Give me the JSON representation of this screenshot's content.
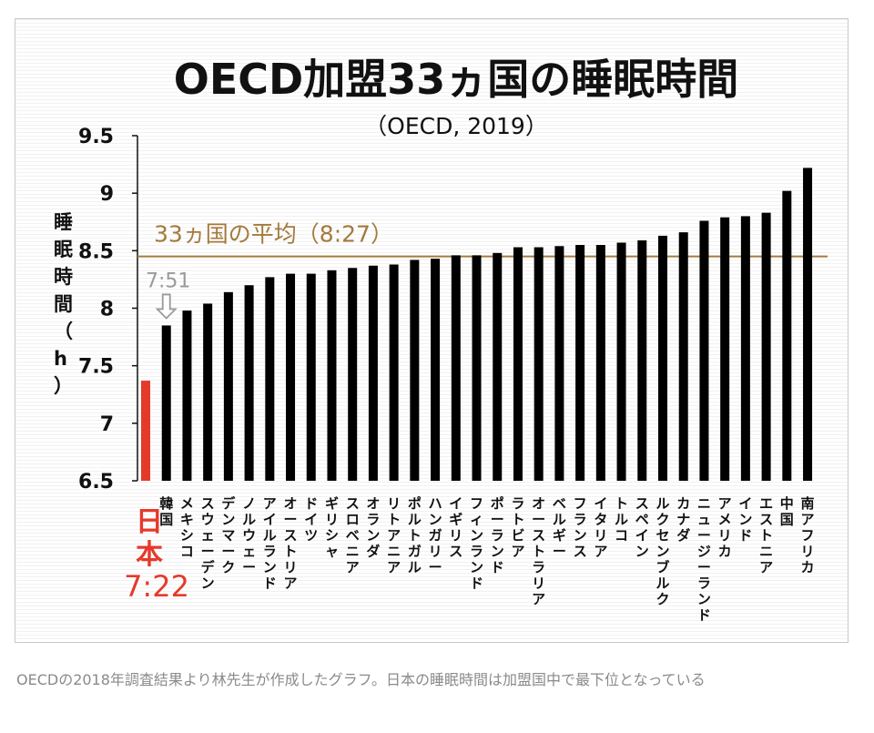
{
  "chart_data": {
    "type": "bar",
    "title": "OECD加盟33ヵ国の睡眠時間",
    "subtitle": "（OECD, 2019）",
    "ylabel": "睡眠時間（h）",
    "ylim": [
      6.5,
      9.5
    ],
    "yticks": [
      "9.5",
      "9",
      "8.5",
      "8",
      "7.5",
      "7",
      "6.5"
    ],
    "grid": false,
    "average": {
      "value": 8.45,
      "label": "33ヵ国の平均（8:27）",
      "color": "#a47a3c"
    },
    "highlight": {
      "category": "日本",
      "value_label": "7:22",
      "color": "#e53a2a"
    },
    "annotation": {
      "text": "7:51",
      "target": "韓国",
      "color": "#9a9a9a"
    },
    "bar_color": "#000000",
    "categories": [
      "日本",
      "韓国",
      "メキシコ",
      "スウェーデン",
      "デンマーク",
      "ノルウェー",
      "アイルランド",
      "オーストリア",
      "ドイツ",
      "ギリシャ",
      "スロベニア",
      "オランダ",
      "リトアニア",
      "ポルトガル",
      "ハンガリー",
      "イギリス",
      "フィンランド",
      "ポーランド",
      "ラトビア",
      "オーストラリア",
      "ベルギー",
      "フランス",
      "イタリア",
      "トルコ",
      "スペイン",
      "ルクセンブルク",
      "カナダ",
      "ニュージーランド",
      "アメリカ",
      "インド",
      "エストニア",
      "中国",
      "南アフリカ"
    ],
    "values": [
      7.37,
      7.85,
      7.98,
      8.04,
      8.14,
      8.2,
      8.27,
      8.3,
      8.3,
      8.33,
      8.35,
      8.37,
      8.38,
      8.42,
      8.43,
      8.46,
      8.46,
      8.48,
      8.53,
      8.53,
      8.54,
      8.55,
      8.55,
      8.57,
      8.59,
      8.63,
      8.66,
      8.76,
      8.79,
      8.8,
      8.83,
      9.02,
      9.22
    ]
  },
  "caption": "OECDの2018年調査結果より林先生が作成したグラフ。日本の睡眠時間は加盟国中で最下位となっている"
}
